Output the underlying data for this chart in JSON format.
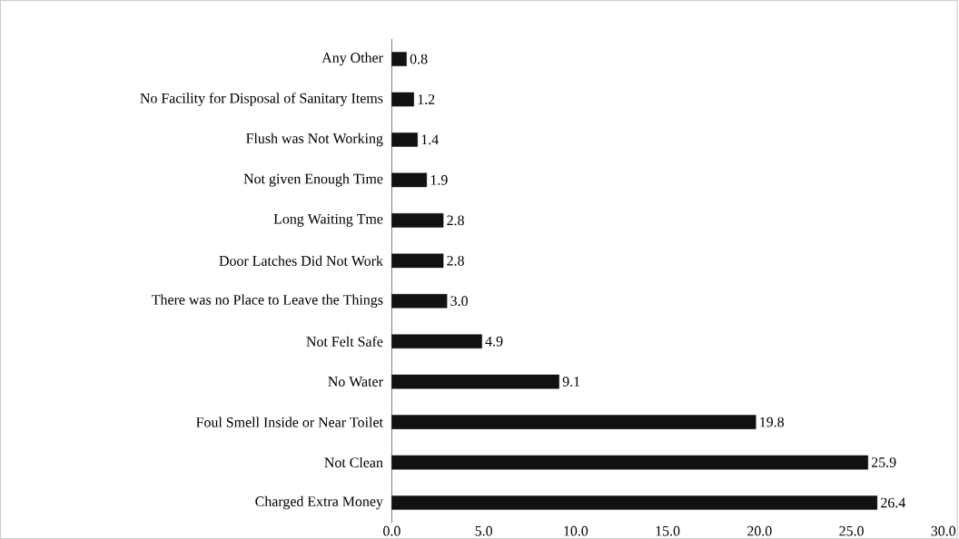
{
  "chart_data": {
    "type": "bar",
    "orientation": "horizontal",
    "categories": [
      "Any Other",
      "No Facility for Disposal of Sanitary Items",
      "Flush was Not Working",
      "Not given Enough Time",
      "Long Waiting Tme",
      "Door Latches Did Not Work",
      "There was no Place to Leave the Things",
      "Not Felt Safe",
      "No Water",
      "Foul Smell Inside or Near Toilet",
      "Not Clean",
      "Charged Extra Money"
    ],
    "values": [
      0.8,
      1.2,
      1.4,
      1.9,
      2.8,
      2.8,
      3.0,
      4.9,
      9.1,
      19.8,
      25.9,
      26.4
    ],
    "color": "#111111",
    "xlim": [
      0,
      30
    ],
    "xticks": [
      {
        "value": 0,
        "label": "0.0"
      },
      {
        "value": 5,
        "label": "5.0"
      },
      {
        "value": 10,
        "label": "10.0"
      },
      {
        "value": 15,
        "label": "15.0"
      },
      {
        "value": 20,
        "label": "20.0"
      },
      {
        "value": 25,
        "label": "25.0"
      },
      {
        "value": 30,
        "label": "30.0"
      }
    ],
    "value_labels": [
      "0.8",
      "1.2",
      "1.4",
      "1.9",
      "2.8",
      "2.8",
      "3.0",
      "4.9",
      "9.1",
      "19.8",
      "25.9",
      "26.4"
    ],
    "grid": false
  }
}
